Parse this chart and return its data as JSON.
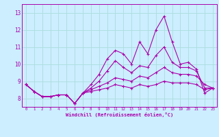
{
  "x": [
    0,
    1,
    2,
    3,
    4,
    5,
    6,
    7,
    8,
    9,
    10,
    11,
    12,
    13,
    14,
    15,
    16,
    17,
    18,
    19,
    20,
    21,
    22,
    23
  ],
  "line1": [
    8.8,
    8.4,
    8.1,
    8.1,
    8.2,
    8.2,
    7.7,
    8.3,
    8.8,
    9.4,
    10.3,
    10.8,
    10.6,
    10.0,
    11.3,
    10.6,
    12.0,
    12.8,
    11.3,
    10.0,
    10.1,
    9.7,
    8.3,
    8.6
  ],
  "line2": [
    8.8,
    8.4,
    8.1,
    8.1,
    8.2,
    8.2,
    7.7,
    8.3,
    8.6,
    9.0,
    9.6,
    10.2,
    9.8,
    9.5,
    9.9,
    9.8,
    10.5,
    11.0,
    10.1,
    9.8,
    9.8,
    9.6,
    8.6,
    8.6
  ],
  "line3": [
    8.8,
    8.4,
    8.1,
    8.1,
    8.2,
    8.2,
    7.7,
    8.3,
    8.5,
    8.7,
    8.9,
    9.2,
    9.1,
    9.0,
    9.3,
    9.2,
    9.5,
    9.8,
    9.5,
    9.4,
    9.4,
    9.3,
    8.8,
    8.6
  ],
  "line4": [
    8.8,
    8.4,
    8.1,
    8.1,
    8.2,
    8.2,
    7.7,
    8.3,
    8.4,
    8.5,
    8.6,
    8.8,
    8.7,
    8.6,
    8.8,
    8.7,
    8.8,
    9.0,
    8.9,
    8.9,
    8.9,
    8.8,
    8.5,
    8.6
  ],
  "line_color": "#aa00aa",
  "bg_color": "#cceeff",
  "grid_color": "#aadddd",
  "xlabel": "Windchill (Refroidissement éolien,°C)",
  "ylim": [
    7.5,
    13.5
  ],
  "xlim": [
    -0.5,
    23.5
  ],
  "yticks": [
    8,
    9,
    10,
    11,
    12,
    13
  ],
  "xticks": [
    0,
    1,
    2,
    3,
    4,
    5,
    6,
    7,
    8,
    9,
    10,
    11,
    12,
    13,
    14,
    15,
    16,
    17,
    18,
    19,
    20,
    21,
    22,
    23
  ]
}
